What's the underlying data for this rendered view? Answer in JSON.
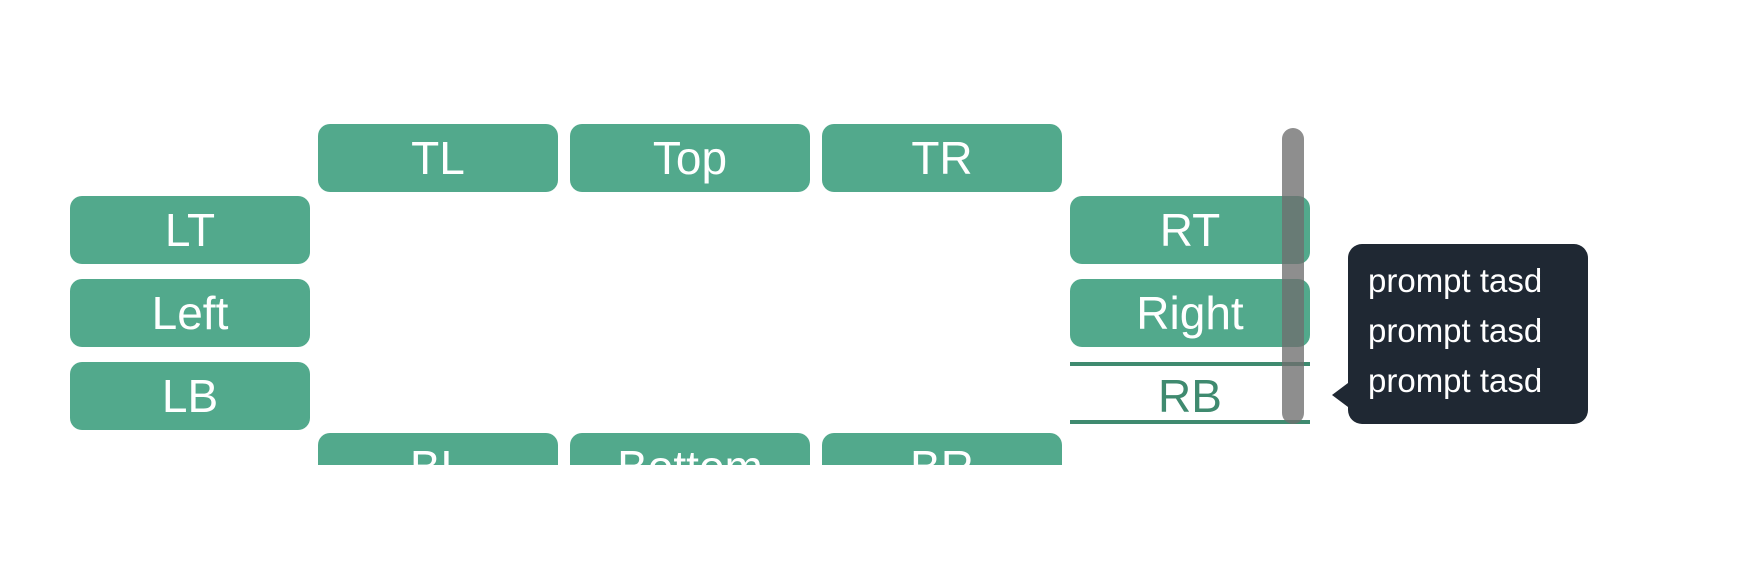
{
  "buttons": {
    "tl": "TL",
    "top": "Top",
    "tr": "TR",
    "lt": "LT",
    "left": "Left",
    "lb": "LB",
    "rt": "RT",
    "right": "Right",
    "rb": "RB",
    "bl": "BL",
    "bottom": "Bottom",
    "br": "BR"
  },
  "tooltip": {
    "lines": [
      "prompt tasd",
      "prompt tasd",
      "prompt tasd"
    ]
  },
  "colors": {
    "button_fill": "#52a98c",
    "outline_green": "#3f8a6f",
    "tooltip_bg": "#1f2833"
  }
}
